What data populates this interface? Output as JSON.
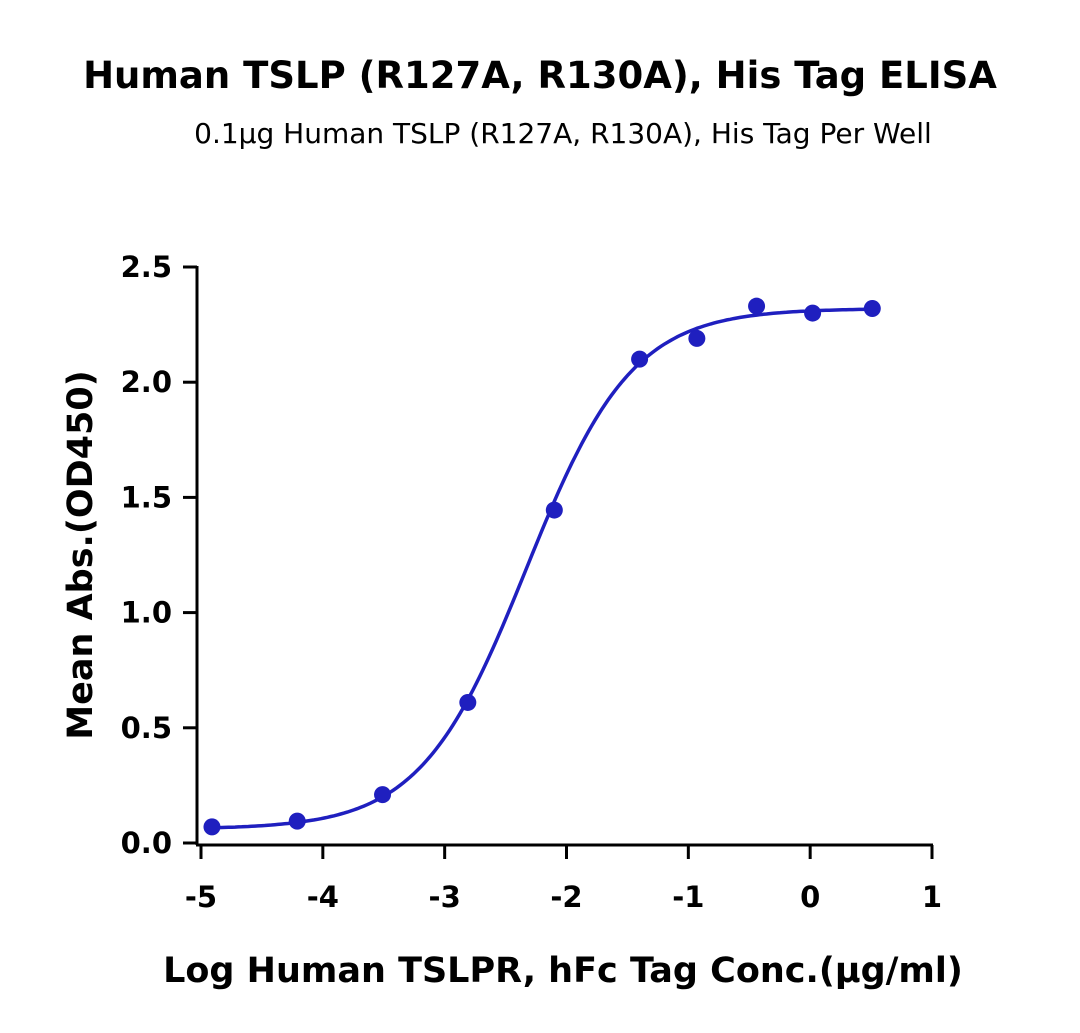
{
  "chart_data": {
    "type": "scatter",
    "title": "Human TSLP (R127A, R130A), His Tag ELISA",
    "subtitle": "0.1μg Human TSLP (R127A, R130A), His Tag Per Well",
    "xlabel": "Log Human TSLPR, hFc Tag Conc.(μg/ml)",
    "ylabel": "Mean Abs.(OD450)",
    "xlim": [
      -5,
      1
    ],
    "ylim": [
      0,
      2.5
    ],
    "xticks": [
      "-5",
      "-4",
      "-3",
      "-2",
      "-1",
      "0",
      "1"
    ],
    "yticks": [
      "0.0",
      "0.5",
      "1.0",
      "1.5",
      "2.0",
      "2.5"
    ],
    "grid": false,
    "color": "#1f1fbf",
    "points": [
      {
        "x": -4.91,
        "y": 0.07
      },
      {
        "x": -4.21,
        "y": 0.095
      },
      {
        "x": -3.51,
        "y": 0.21
      },
      {
        "x": -2.81,
        "y": 0.61
      },
      {
        "x": -2.1,
        "y": 1.445
      },
      {
        "x": -1.4,
        "y": 2.1
      },
      {
        "x": -0.93,
        "y": 2.19
      },
      {
        "x": -0.44,
        "y": 2.33
      },
      {
        "x": 0.02,
        "y": 2.3
      },
      {
        "x": 0.51,
        "y": 2.32
      }
    ],
    "fit": {
      "model": "4PL",
      "bottom": 0.06,
      "top": 2.32,
      "logEC50": -2.33,
      "hill": 1.0,
      "x_range": [
        -4.91,
        0.51
      ]
    }
  }
}
